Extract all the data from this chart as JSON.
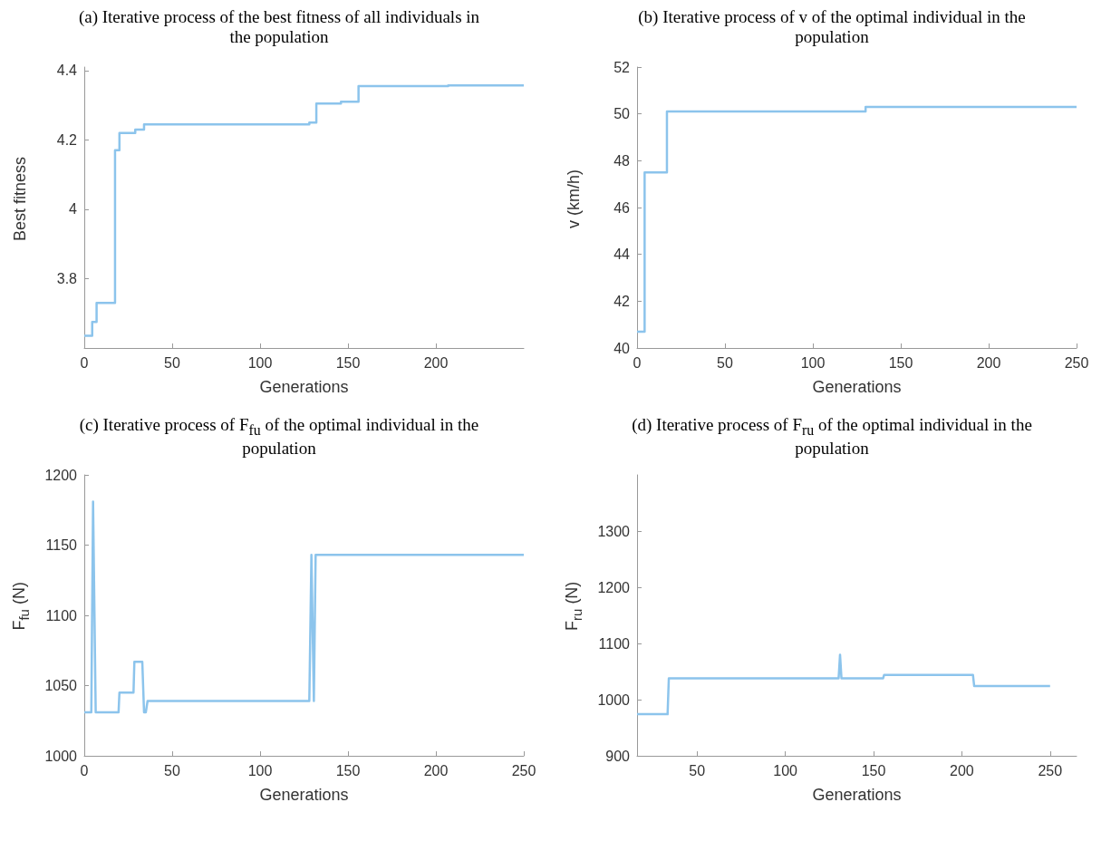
{
  "chart_data": [
    {
      "type": "step",
      "title": "(a) Iterative process of the best fitness of all individuals in the population",
      "xlabel": "Generations",
      "ylabel": "Best fitness",
      "xlim": [
        0,
        250
      ],
      "xticks": [
        0,
        50,
        100,
        150,
        200
      ],
      "ylim": [
        3.6,
        4.41
      ],
      "yticks": [
        3.8,
        4,
        4.2,
        4.4
      ],
      "series": [
        {
          "color": "#8cc4ec",
          "x": [
            0,
            4.5,
            7,
            17.5,
            20,
            29,
            34,
            128,
            132,
            146,
            156,
            207,
            250
          ],
          "values": [
            3.635,
            3.675,
            3.73,
            4.17,
            4.22,
            4.23,
            4.245,
            4.25,
            4.305,
            4.31,
            4.355,
            4.357,
            4.357
          ]
        }
      ]
    },
    {
      "type": "step",
      "title": "(b) Iterative process of v of the optimal individual in the population",
      "xlabel": "Generations",
      "ylabel": "v (km/h)",
      "xlim": [
        0,
        250
      ],
      "xticks": [
        0,
        50,
        100,
        150,
        200,
        250
      ],
      "ylim": [
        40,
        52
      ],
      "yticks": [
        40,
        42,
        44,
        46,
        48,
        50,
        52
      ],
      "series": [
        {
          "color": "#8cc4ec",
          "x": [
            0,
            4.3,
            17,
            130,
            250
          ],
          "values": [
            40.7,
            47.5,
            50.1,
            50.3,
            50.3
          ]
        }
      ]
    },
    {
      "type": "line",
      "title": "(c) Iterative process of F$_{fu}$ of the optimal individual in the population",
      "xlabel": "Generations",
      "ylabel": "F$_{fu}$ (N)",
      "xlim": [
        0,
        250
      ],
      "xticks": [
        0,
        50,
        100,
        150,
        200,
        250
      ],
      "ylim": [
        1000,
        1200
      ],
      "yticks": [
        1000,
        1050,
        1100,
        1150,
        1200
      ],
      "series": [
        {
          "color": "#8cc4ec",
          "x": [
            0,
            4,
            5,
            6.5,
            19.5,
            20,
            28,
            28.5,
            33,
            34,
            35,
            36,
            128,
            129.2,
            130.6,
            131.6,
            250
          ],
          "values": [
            1031,
            1031,
            1181,
            1031,
            1031,
            1045,
            1045,
            1067,
            1067,
            1031,
            1031,
            1039,
            1039,
            1143,
            1039,
            1143,
            1143
          ]
        }
      ]
    },
    {
      "type": "line",
      "title": "(d) Iterative process of F$_{ru}$ of the optimal individual in the population",
      "xlabel": "Generations",
      "ylabel": "F$_{ru}$ (N)",
      "xlim": [
        16,
        265
      ],
      "xticks": [
        50,
        100,
        150,
        200,
        250
      ],
      "ylim": [
        900,
        1400
      ],
      "yticks": [
        900,
        1000,
        1100,
        1200,
        1300
      ],
      "series": [
        {
          "color": "#8cc4ec",
          "x": [
            16,
            33.3,
            34,
            130.2,
            131,
            131.8,
            155.4,
            156,
            206.3,
            207,
            250
          ],
          "values": [
            974,
            974,
            1038,
            1038,
            1080,
            1038,
            1038,
            1044,
            1044,
            1024,
            1024
          ]
        }
      ]
    }
  ]
}
